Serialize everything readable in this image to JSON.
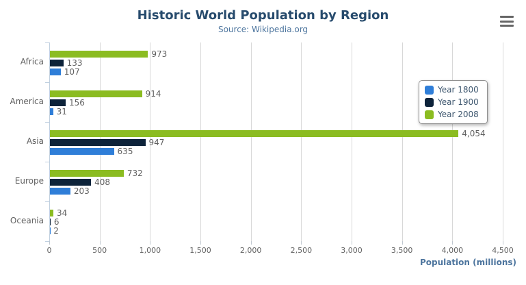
{
  "header": {
    "title": "Historic World Population by Region",
    "subtitle": "Source: Wikipedia.org"
  },
  "export_menu": {
    "icon": "hamburger-menu-icon"
  },
  "chart_data": {
    "type": "bar",
    "orientation": "horizontal",
    "title": "Historic World Population by Region",
    "subtitle": "Source: Wikipedia.org",
    "xlabel": "Population (millions)",
    "ylabel": "",
    "categories": [
      "Africa",
      "America",
      "Asia",
      "Europe",
      "Oceania"
    ],
    "series": [
      {
        "name": "Year 1800",
        "color": "#2f7ed8",
        "values": [
          107,
          31,
          635,
          203,
          2
        ]
      },
      {
        "name": "Year 1900",
        "color": "#0d233a",
        "values": [
          133,
          156,
          947,
          408,
          6
        ]
      },
      {
        "name": "Year 2008",
        "color": "#8bbc21",
        "values": [
          973,
          914,
          4054,
          732,
          34
        ]
      }
    ],
    "xlim": [
      0,
      4500
    ],
    "x_ticks": [
      0,
      500,
      1000,
      1500,
      2000,
      2500,
      3000,
      3500,
      4000,
      4500
    ],
    "grid": true,
    "data_labels": true,
    "legend_position": "right-inside"
  },
  "colors": {
    "title": "#274b6d",
    "subtitle": "#4d759e",
    "axis_title": "#4d759e",
    "labels": "#606060",
    "legend_text": "#3e576f",
    "gridline": "#d8d8d8",
    "axis_line": "#c0d0e0",
    "export_icon": "#666666"
  }
}
